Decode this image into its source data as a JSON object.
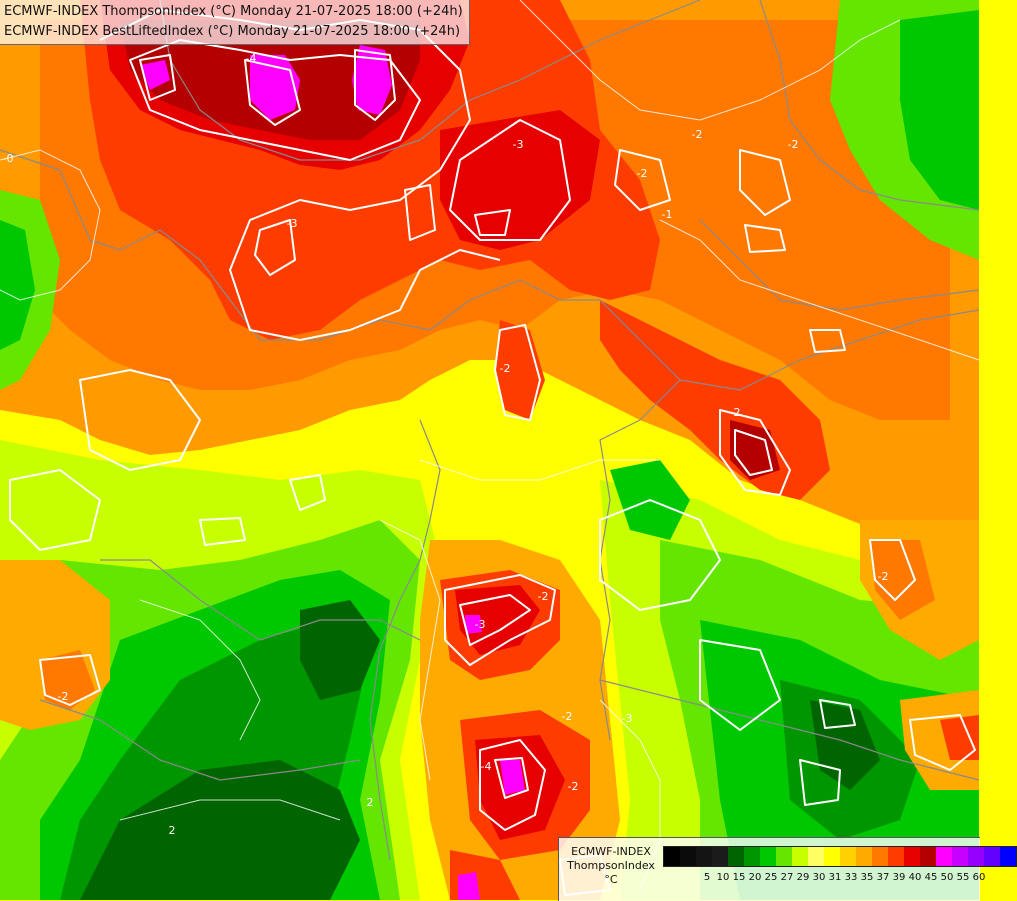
{
  "title": {
    "line1": "ECMWF-INDEX ThompsonIndex (°C) Monday 21-07-2025 18:00 (+24h)",
    "line2": "ECMWF-INDEX BestLiftedIndex (°C) Monday 21-07-2025 18:00 (+24h)"
  },
  "legend": {
    "model": "ECMWF-INDEX",
    "parameter": "ThompsonIndex",
    "unit": "°C",
    "colors": [
      "#000000",
      "#0b0b0b",
      "#141414",
      "#1b1b1b",
      "#006400",
      "#009600",
      "#00c800",
      "#64e600",
      "#c8ff00",
      "#ffff64",
      "#ffff00",
      "#ffd200",
      "#ffaa00",
      "#ff7800",
      "#ff3c00",
      "#e60000",
      "#b40000",
      "#ff00ff",
      "#c800ff",
      "#9600ff",
      "#6400ff",
      "#0000ff"
    ],
    "ticks": [
      "5",
      "10",
      "15",
      "20",
      "25",
      "27",
      "29",
      "30",
      "31",
      "33",
      "35",
      "37",
      "39",
      "40",
      "45",
      "50",
      "55",
      "60"
    ]
  },
  "contour_labels": [
    "-3",
    "-4",
    "-3",
    "-2",
    "-2",
    "-2",
    "-2",
    "-2",
    "-2",
    "-1",
    "-2",
    "-2",
    "-3",
    "-4",
    "-2",
    "-3",
    "2",
    "-2",
    "2",
    "-0"
  ]
}
